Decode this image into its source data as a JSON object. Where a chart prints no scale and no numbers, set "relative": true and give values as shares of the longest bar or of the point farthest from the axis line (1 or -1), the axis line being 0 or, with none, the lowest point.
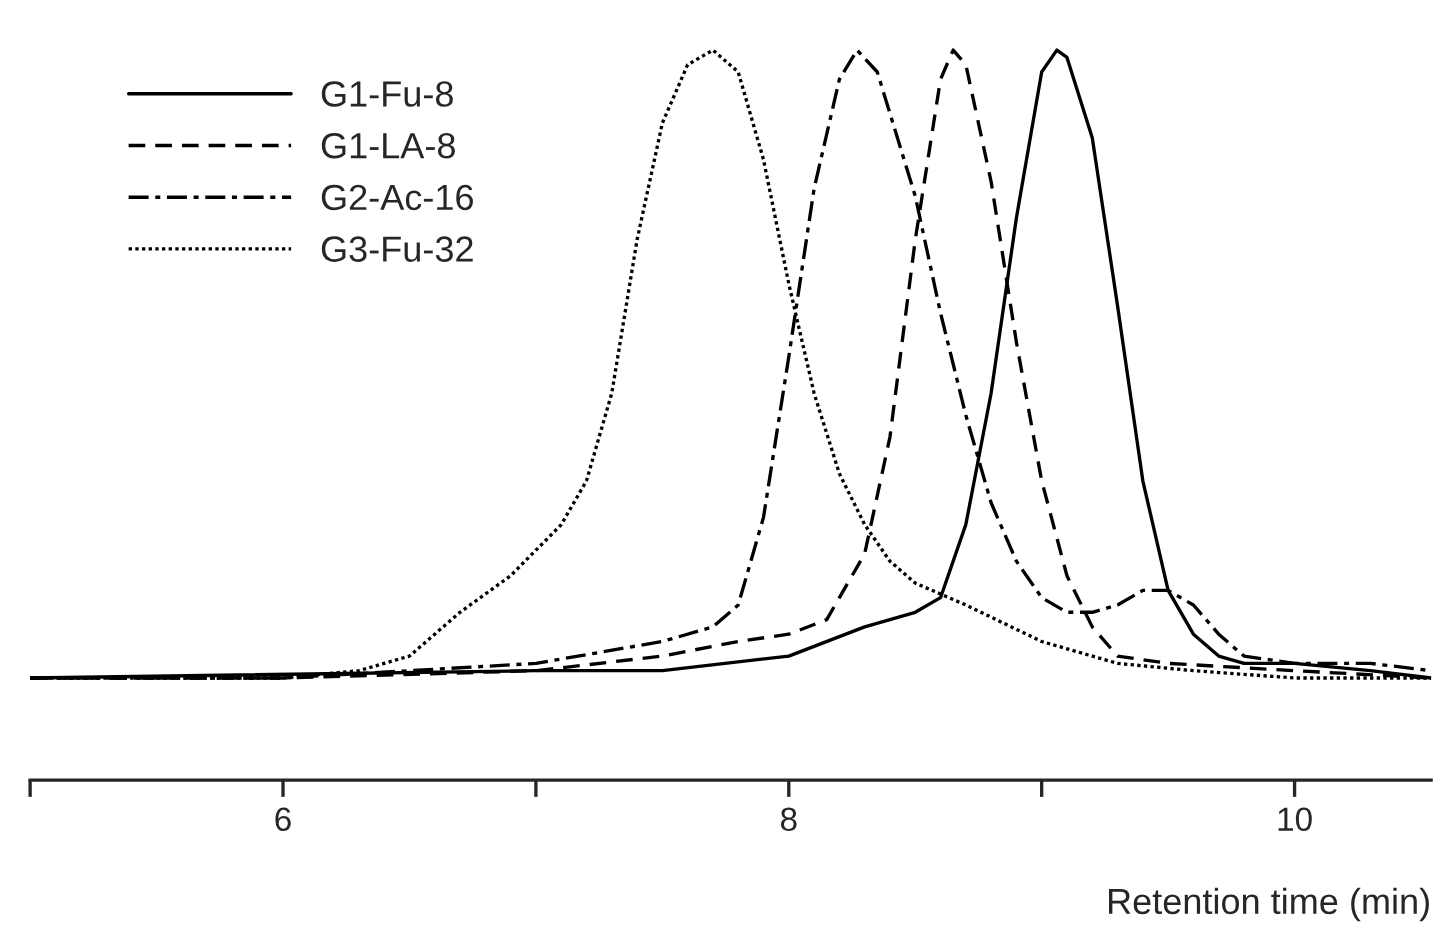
{
  "chart_data": {
    "type": "line",
    "relative": true,
    "xlabel": "Retention time (min)",
    "xlim": [
      5.0,
      10.54
    ],
    "xticks": [
      {
        "value": 5,
        "label": null
      },
      6,
      {
        "value": 7,
        "label": null
      },
      8,
      {
        "value": 9,
        "label": null
      },
      10
    ],
    "legend": "top left",
    "grid": false,
    "tick_labels": "x",
    "series": [
      {
        "name": "G1-Fu-8",
        "color": "#000000",
        "line_style": "solid",
        "x": [
          5.0,
          7.0,
          7.5,
          8.0,
          8.3,
          8.5,
          8.6,
          8.7,
          8.8,
          8.9,
          9.0,
          9.06,
          9.1,
          9.2,
          9.3,
          9.4,
          9.5,
          9.6,
          9.7,
          9.8,
          10.0,
          10.3,
          10.54
        ],
        "values": [
          0.14,
          0.15,
          0.15,
          0.17,
          0.21,
          0.23,
          0.25,
          0.35,
          0.53,
          0.77,
          0.97,
          1.0,
          0.99,
          0.88,
          0.65,
          0.41,
          0.26,
          0.2,
          0.17,
          0.16,
          0.16,
          0.15,
          0.14
        ]
      },
      {
        "name": "G1-LA-8",
        "color": "#000000",
        "line_style": "dashed",
        "x": [
          5.0,
          6.0,
          7.0,
          7.5,
          7.8,
          8.0,
          8.15,
          8.3,
          8.4,
          8.5,
          8.6,
          8.65,
          8.7,
          8.8,
          8.9,
          9.0,
          9.1,
          9.2,
          9.3,
          9.5,
          10.0,
          10.54
        ],
        "values": [
          0.14,
          0.14,
          0.15,
          0.17,
          0.19,
          0.2,
          0.22,
          0.31,
          0.47,
          0.74,
          0.96,
          1.0,
          0.98,
          0.82,
          0.6,
          0.41,
          0.28,
          0.21,
          0.17,
          0.16,
          0.15,
          0.14
        ]
      },
      {
        "name": "G2-Ac-16",
        "color": "#000000",
        "line_style": "dashdot",
        "x": [
          5.0,
          6.0,
          7.0,
          7.5,
          7.7,
          7.8,
          7.9,
          8.0,
          8.1,
          8.2,
          8.27,
          8.35,
          8.5,
          8.6,
          8.7,
          8.8,
          8.9,
          9.0,
          9.1,
          9.2,
          9.3,
          9.4,
          9.5,
          9.6,
          9.7,
          9.8,
          10.0,
          10.3,
          10.54
        ],
        "values": [
          0.14,
          0.14,
          0.16,
          0.19,
          0.21,
          0.24,
          0.36,
          0.58,
          0.81,
          0.96,
          1.0,
          0.97,
          0.8,
          0.64,
          0.5,
          0.38,
          0.3,
          0.25,
          0.23,
          0.23,
          0.24,
          0.26,
          0.26,
          0.24,
          0.2,
          0.17,
          0.16,
          0.16,
          0.15
        ]
      },
      {
        "name": "G3-Fu-32",
        "color": "#000000",
        "line_style": "dotted",
        "x": [
          5.0,
          6.0,
          6.3,
          6.5,
          6.7,
          6.9,
          7.1,
          7.2,
          7.3,
          7.4,
          7.5,
          7.6,
          7.7,
          7.8,
          7.9,
          8.0,
          8.1,
          8.2,
          8.3,
          8.4,
          8.5,
          8.7,
          9.0,
          9.3,
          9.6,
          10.0,
          10.54
        ],
        "values": [
          0.14,
          0.14,
          0.15,
          0.17,
          0.23,
          0.28,
          0.35,
          0.41,
          0.53,
          0.74,
          0.9,
          0.98,
          1.0,
          0.97,
          0.85,
          0.68,
          0.53,
          0.42,
          0.35,
          0.3,
          0.27,
          0.24,
          0.19,
          0.16,
          0.15,
          0.14,
          0.14
        ]
      }
    ]
  }
}
